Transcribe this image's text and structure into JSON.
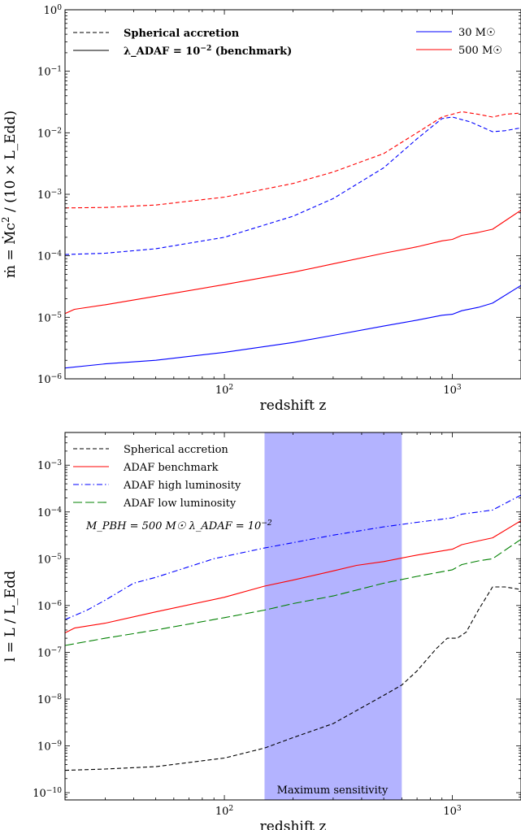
{
  "chart_data": [
    {
      "type": "line",
      "xlabel": "redshift z",
      "ylabel": "ṁ = Ṁc² / (10 × L_Edd)",
      "xscale": "log",
      "yscale": "log",
      "xlim": [
        20,
        2000
      ],
      "ylim": [
        1e-06,
        1
      ],
      "x_ticks": [
        {
          "v": 100,
          "label": "10²"
        },
        {
          "v": 1000,
          "label": "10³"
        }
      ],
      "y_ticks": [
        {
          "v": 1e-06,
          "label": "10⁻⁶"
        },
        {
          "v": 1e-05,
          "label": "10⁻⁵"
        },
        {
          "v": 0.0001,
          "label": "10⁻⁴"
        },
        {
          "v": 0.001,
          "label": "10⁻³"
        },
        {
          "v": 0.01,
          "label": "10⁻²"
        },
        {
          "v": 0.1,
          "label": "10⁻¹"
        },
        {
          "v": 1,
          "label": "10⁰"
        }
      ],
      "legend_styles": {
        "placement": "top-left",
        "items": [
          {
            "label": "Spherical accretion",
            "dash": "dashed"
          },
          {
            "label": "λ_ADAF = 10⁻² (benchmark)",
            "dash": "solid"
          }
        ]
      },
      "legend_masses": {
        "placement": "top-right",
        "items": [
          {
            "label": "30 M☉",
            "color": "#0000ff"
          },
          {
            "label": "500 M☉",
            "color": "#ff0000"
          }
        ]
      },
      "series": [
        {
          "color": "#ff0000",
          "dash": "dashed",
          "points": [
            [
              20,
              0.0006
            ],
            [
              30,
              0.00061
            ],
            [
              50,
              0.00067
            ],
            [
              100,
              0.0009
            ],
            [
              200,
              0.0015
            ],
            [
              300,
              0.0023
            ],
            [
              500,
              0.0046
            ],
            [
              700,
              0.01
            ],
            [
              900,
              0.018
            ],
            [
              1100,
              0.022
            ],
            [
              1300,
              0.02
            ],
            [
              1500,
              0.018
            ],
            [
              1700,
              0.02
            ],
            [
              2000,
              0.021
            ]
          ]
        },
        {
          "color": "#0000ff",
          "dash": "dashed",
          "points": [
            [
              20,
              0.000105
            ],
            [
              30,
              0.00011
            ],
            [
              50,
              0.00013
            ],
            [
              100,
              0.0002
            ],
            [
              200,
              0.00044
            ],
            [
              300,
              0.00085
            ],
            [
              500,
              0.0027
            ],
            [
              700,
              0.008
            ],
            [
              900,
              0.017
            ],
            [
              1000,
              0.018
            ],
            [
              1200,
              0.015
            ],
            [
              1500,
              0.0104
            ],
            [
              1700,
              0.0108
            ],
            [
              2000,
              0.012
            ]
          ]
        },
        {
          "color": "#ff0000",
          "dash": "solid",
          "points": [
            [
              20,
              1.15e-05
            ],
            [
              22,
              1.35e-05
            ],
            [
              30,
              1.6e-05
            ],
            [
              50,
              2.2e-05
            ],
            [
              100,
              3.4e-05
            ],
            [
              200,
              5.4e-05
            ],
            [
              300,
              7.4e-05
            ],
            [
              500,
              0.00011
            ],
            [
              700,
              0.00014
            ],
            [
              900,
              0.000175
            ],
            [
              1000,
              0.000185
            ],
            [
              1100,
              0.000215
            ],
            [
              1300,
              0.00024
            ],
            [
              1500,
              0.00027
            ],
            [
              2000,
              0.00055
            ]
          ]
        },
        {
          "color": "#0000ff",
          "dash": "solid",
          "points": [
            [
              20,
              1.5e-06
            ],
            [
              30,
              1.75e-06
            ],
            [
              50,
              2e-06
            ],
            [
              100,
              2.7e-06
            ],
            [
              200,
              3.9e-06
            ],
            [
              300,
              5.1e-06
            ],
            [
              500,
              7.2e-06
            ],
            [
              700,
              9e-06
            ],
            [
              900,
              1.08e-05
            ],
            [
              1000,
              1.12e-05
            ],
            [
              1100,
              1.28e-05
            ],
            [
              1300,
              1.45e-05
            ],
            [
              1500,
              1.7e-05
            ],
            [
              2000,
              3.3e-05
            ]
          ]
        }
      ]
    },
    {
      "type": "line",
      "xlabel": "redshift z",
      "ylabel": "l = L / L_Edd",
      "xscale": "log",
      "yscale": "log",
      "xlim": [
        20,
        2000
      ],
      "ylim": [
        7e-11,
        0.005
      ],
      "x_ticks": [
        {
          "v": 100,
          "label": "10²"
        },
        {
          "v": 1000,
          "label": "10³"
        }
      ],
      "y_ticks": [
        {
          "v": 1e-10,
          "label": "10⁻¹⁰"
        },
        {
          "v": 1e-09,
          "label": "10⁻⁹"
        },
        {
          "v": 1e-08,
          "label": "10⁻⁸"
        },
        {
          "v": 1e-07,
          "label": "10⁻⁷"
        },
        {
          "v": 1e-06,
          "label": "10⁻⁶"
        },
        {
          "v": 1e-05,
          "label": "10⁻⁵"
        },
        {
          "v": 0.0001,
          "label": "10⁻⁴"
        },
        {
          "v": 0.001,
          "label": "10⁻³"
        }
      ],
      "band": {
        "x0": 150,
        "x1": 600,
        "color": "#b3b3ff",
        "label": "Maximum sensitivity"
      },
      "annotation": "M_PBH = 500 M☉  λ_ADAF = 10⁻²",
      "legend": {
        "placement": "top-left",
        "items": [
          {
            "label": "Spherical accretion",
            "color": "#000000",
            "dash": "dashed"
          },
          {
            "label": "ADAF benchmark",
            "color": "#ff0000",
            "dash": "solid"
          },
          {
            "label": "ADAF high luminosity",
            "color": "#0000ff",
            "dash": "dashdot"
          },
          {
            "label": "ADAF low luminosity",
            "color": "#008000",
            "dash": "longdash"
          }
        ]
      },
      "series": [
        {
          "color": "#000000",
          "dash": "dashed",
          "points": [
            [
              20,
              3e-10
            ],
            [
              30,
              3.2e-10
            ],
            [
              50,
              3.6e-10
            ],
            [
              100,
              5.5e-10
            ],
            [
              150,
              9e-10
            ],
            [
              200,
              1.5e-09
            ],
            [
              300,
              3e-09
            ],
            [
              500,
              1.2e-08
            ],
            [
              600,
              2e-08
            ],
            [
              700,
              4e-08
            ],
            [
              850,
              1.2e-07
            ],
            [
              950,
              2e-07
            ],
            [
              1050,
              2e-07
            ],
            [
              1150,
              2.7e-07
            ],
            [
              1300,
              8e-07
            ],
            [
              1500,
              2.5e-06
            ],
            [
              1700,
              2.5e-06
            ],
            [
              2000,
              2.2e-06
            ]
          ]
        },
        {
          "color": "#ff0000",
          "dash": "solid",
          "points": [
            [
              20,
              2.6e-07
            ],
            [
              22,
              3.3e-07
            ],
            [
              30,
              4.2e-07
            ],
            [
              50,
              7.3e-07
            ],
            [
              100,
              1.5e-06
            ],
            [
              150,
              2.6e-06
            ],
            [
              200,
              3.5e-06
            ],
            [
              300,
              5.5e-06
            ],
            [
              380,
              7.2e-06
            ],
            [
              500,
              8.7e-06
            ],
            [
              700,
              1.2e-05
            ],
            [
              1000,
              1.6e-05
            ],
            [
              1100,
              2e-05
            ],
            [
              1300,
              2.4e-05
            ],
            [
              1500,
              2.8e-05
            ],
            [
              2000,
              6.5e-05
            ]
          ]
        },
        {
          "color": "#0000ff",
          "dash": "dashdot",
          "points": [
            [
              20,
              5e-07
            ],
            [
              25,
              8e-07
            ],
            [
              30,
              1.3e-06
            ],
            [
              40,
              3e-06
            ],
            [
              50,
              4e-06
            ],
            [
              90,
              1e-05
            ],
            [
              150,
              1.7e-05
            ],
            [
              300,
              3.2e-05
            ],
            [
              500,
              4.8e-05
            ],
            [
              700,
              6e-05
            ],
            [
              1000,
              7.5e-05
            ],
            [
              1100,
              9e-05
            ],
            [
              1300,
              0.0001
            ],
            [
              1500,
              0.00011
            ],
            [
              2000,
              0.00023
            ]
          ]
        },
        {
          "color": "#008000",
          "dash": "longdash",
          "points": [
            [
              20,
              1.4e-07
            ],
            [
              30,
              2e-07
            ],
            [
              50,
              3e-07
            ],
            [
              100,
              5.5e-07
            ],
            [
              150,
              8e-07
            ],
            [
              200,
              1.1e-06
            ],
            [
              300,
              1.6e-06
            ],
            [
              500,
              3e-06
            ],
            [
              700,
              4.2e-06
            ],
            [
              1000,
              5.8e-06
            ],
            [
              1100,
              7.5e-06
            ],
            [
              1300,
              9e-06
            ],
            [
              1500,
              1e-05
            ],
            [
              2000,
              2.6e-05
            ]
          ]
        }
      ]
    }
  ]
}
